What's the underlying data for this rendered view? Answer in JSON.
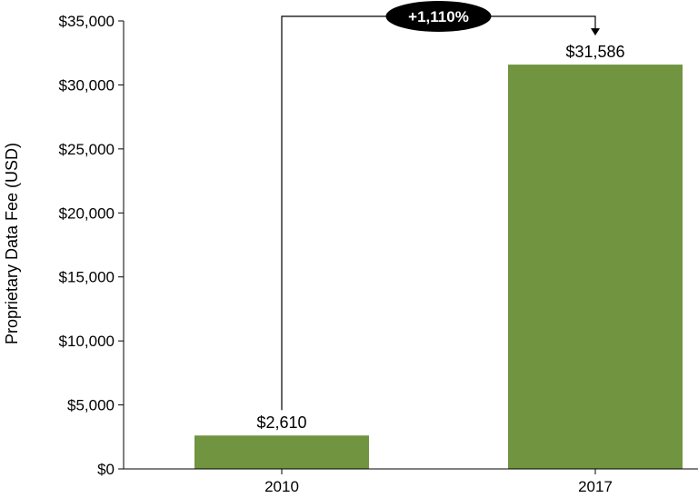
{
  "chart_data": {
    "type": "bar",
    "title": "",
    "xlabel": "",
    "ylabel": "Proprietary Data Fee (USD)",
    "categories": [
      "2010",
      "2017"
    ],
    "values": [
      2610,
      31586
    ],
    "data_labels": [
      "$2,610",
      "$31,586"
    ],
    "ylim": [
      0,
      35000
    ],
    "yticks": [
      0,
      5000,
      10000,
      15000,
      20000,
      25000,
      30000,
      35000
    ],
    "ytick_labels": [
      "$0",
      "$5,000",
      "$10,000",
      "$15,000",
      "$20,000",
      "$25,000",
      "$30,000",
      "$35,000"
    ],
    "grid": false,
    "legend": "none",
    "bar_color": "#70943F",
    "annotation": {
      "text": "+1,110%",
      "from_category": "2010",
      "to_category": "2017",
      "badge_color": "#000000",
      "text_color": "#ffffff"
    }
  }
}
